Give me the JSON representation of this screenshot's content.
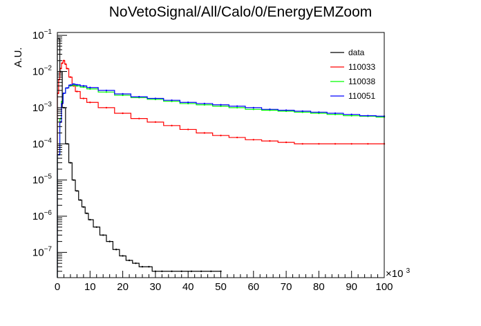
{
  "chart_data": {
    "type": "line",
    "title": "NoVetoSignal/All/Calo/0/EnergyEMZoom",
    "xlabel": "",
    "ylabel": "A.U.",
    "x_multiplier_label": "×10",
    "x_multiplier_exponent": "3",
    "xlim": [
      0,
      100
    ],
    "ylim": [
      2e-08,
      0.12
    ],
    "yscale": "log",
    "x_ticks": [
      0,
      10,
      20,
      30,
      40,
      50,
      60,
      70,
      80,
      90,
      100
    ],
    "x_tick_labels": [
      "0",
      "10",
      "20",
      "30",
      "40",
      "50",
      "60",
      "70",
      "80",
      "90",
      "100"
    ],
    "y_ticks": [
      1e-07,
      1e-06,
      1e-05,
      0.0001,
      0.001,
      0.01,
      0.1
    ],
    "y_tick_labels": [
      {
        "base": "10",
        "exp": "−7"
      },
      {
        "base": "10",
        "exp": "−6"
      },
      {
        "base": "10",
        "exp": "−5"
      },
      {
        "base": "10",
        "exp": "−4"
      },
      {
        "base": "10",
        "exp": "−3"
      },
      {
        "base": "10",
        "exp": "−2"
      },
      {
        "base": "10",
        "exp": "−1"
      }
    ],
    "grid": false,
    "legend_position": "top-right",
    "series": [
      {
        "name": "data",
        "color": "#000000",
        "x": [
          0.5,
          1,
          2,
          3,
          4,
          5,
          6,
          7,
          8,
          9,
          10,
          12,
          14,
          16,
          18,
          20,
          22,
          24,
          26,
          28,
          30,
          32,
          35,
          38,
          41,
          44,
          47,
          50
        ],
        "y": [
          0.08,
          0.01,
          0.001,
          0.0001,
          3e-05,
          1e-05,
          5e-06,
          2.8e-06,
          1.8e-06,
          1.2e-06,
          8e-07,
          5e-07,
          3e-07,
          2e-07,
          1.2e-07,
          8e-08,
          6e-08,
          5e-08,
          4e-08,
          4e-08,
          3e-08,
          3e-08,
          3e-08,
          3e-08,
          3e-08,
          3e-08,
          3e-08,
          3e-08
        ]
      },
      {
        "name": "110033",
        "color": "#ff0000",
        "x": [
          0.3,
          0.5,
          1,
          1.5,
          2,
          2.5,
          3,
          4,
          5,
          6,
          8,
          10,
          15,
          20,
          25,
          30,
          35,
          40,
          45,
          50,
          55,
          60,
          65,
          70,
          75,
          80,
          85,
          90,
          95,
          100
        ],
        "y": [
          0.0025,
          0.006,
          0.012,
          0.017,
          0.02,
          0.016,
          0.012,
          0.007,
          0.004,
          0.0028,
          0.0018,
          0.0014,
          0.001,
          0.0007,
          0.0005,
          0.0004,
          0.00032,
          0.00025,
          0.0002,
          0.00017,
          0.00015,
          0.00013,
          0.00012,
          0.00011,
          0.0001,
          0.0001,
          0.0001,
          0.0001,
          0.0001,
          0.0001
        ]
      },
      {
        "name": "110038",
        "color": "#00ff00",
        "x": [
          0.5,
          1,
          1.5,
          2,
          3,
          4,
          5,
          6,
          8,
          10,
          15,
          20,
          25,
          30,
          35,
          40,
          45,
          50,
          55,
          60,
          65,
          70,
          75,
          80,
          85,
          90,
          95,
          100
        ],
        "y": [
          5e-05,
          0.0005,
          0.0015,
          0.0025,
          0.0035,
          0.004,
          0.0042,
          0.004,
          0.0037,
          0.0033,
          0.0027,
          0.0022,
          0.0019,
          0.0017,
          0.0015,
          0.0013,
          0.0012,
          0.0011,
          0.001,
          0.0009,
          0.00085,
          0.0008,
          0.00075,
          0.0007,
          0.00065,
          0.0006,
          0.00058,
          0.00055
        ]
      },
      {
        "name": "110051",
        "color": "#0000ff",
        "x": [
          0.5,
          1,
          1.5,
          2,
          3,
          4,
          5,
          6,
          8,
          10,
          15,
          20,
          25,
          30,
          35,
          40,
          45,
          50,
          55,
          60,
          65,
          70,
          75,
          80,
          85,
          90,
          95,
          100
        ],
        "y": [
          5e-05,
          0.0004,
          0.0013,
          0.0025,
          0.0035,
          0.0042,
          0.0045,
          0.0043,
          0.004,
          0.0036,
          0.003,
          0.0024,
          0.002,
          0.0018,
          0.0016,
          0.0014,
          0.0013,
          0.0012,
          0.0011,
          0.001,
          0.0009,
          0.00085,
          0.0008,
          0.00075,
          0.0007,
          0.00065,
          0.0006,
          0.00058
        ]
      }
    ]
  }
}
